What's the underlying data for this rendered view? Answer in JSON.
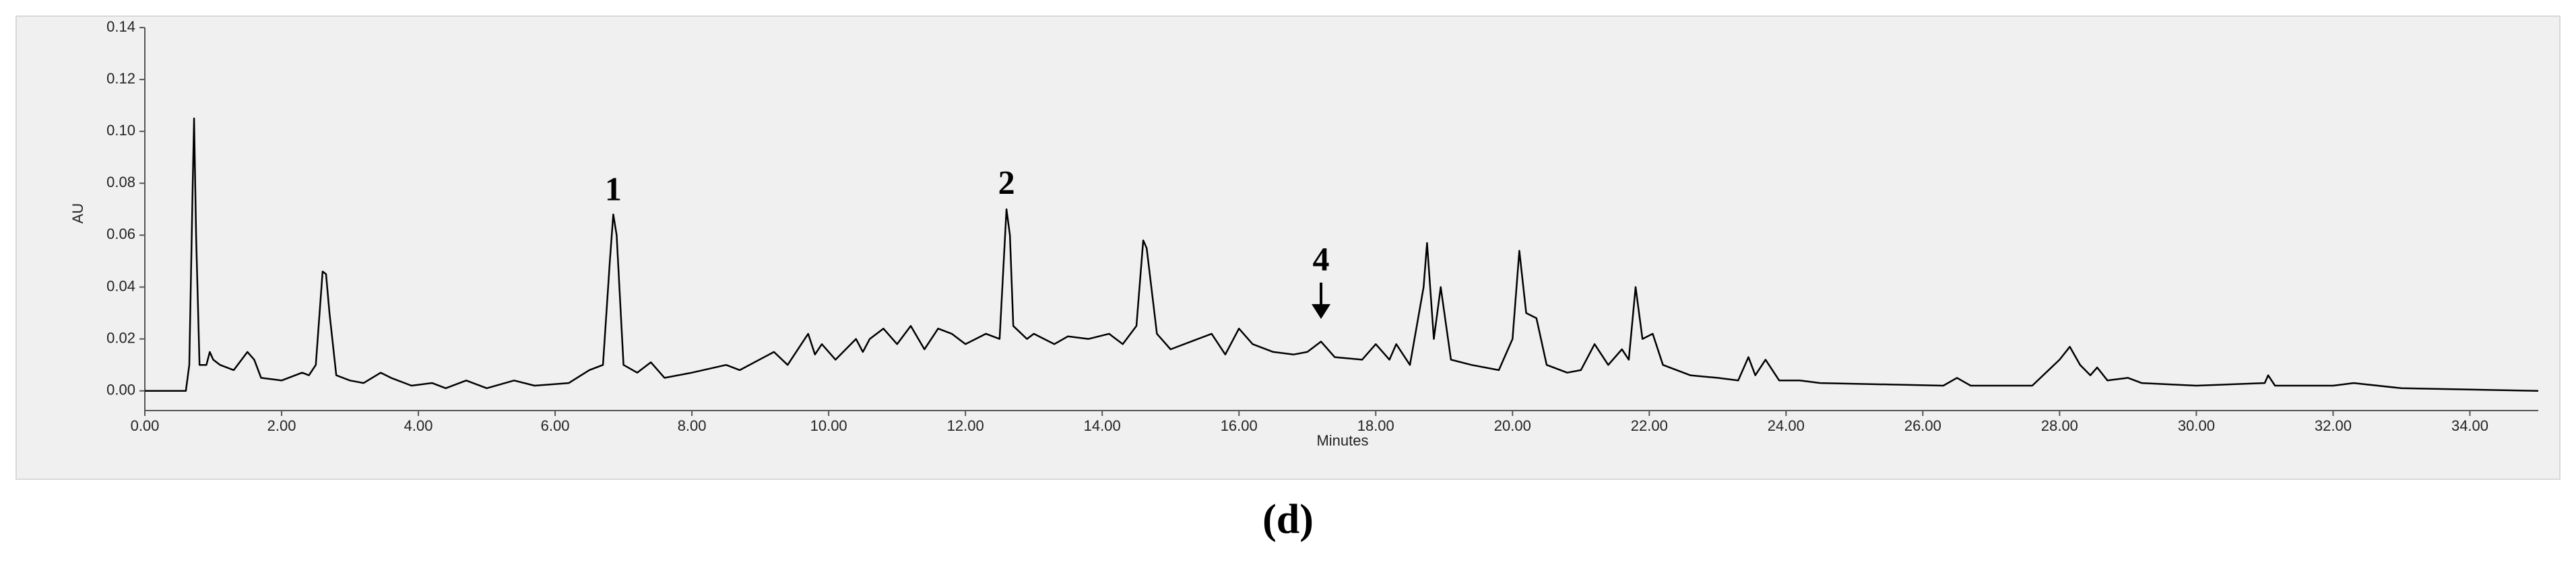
{
  "chart_data": {
    "type": "line",
    "caption": "(d)",
    "x_label": "Minutes",
    "y_label": "AU",
    "x": [
      0,
      0.6,
      0.65,
      0.7,
      0.72,
      0.75,
      0.8,
      0.9,
      0.95,
      1.0,
      1.1,
      1.3,
      1.5,
      1.6,
      1.7,
      2.0,
      2.3,
      2.4,
      2.5,
      2.6,
      2.65,
      2.7,
      2.8,
      3.0,
      3.2,
      3.45,
      3.6,
      3.9,
      4.2,
      4.4,
      4.7,
      5.0,
      5.4,
      5.7,
      6.2,
      6.5,
      6.7,
      6.8,
      6.85,
      6.9,
      7.0,
      7.2,
      7.4,
      7.6,
      8.0,
      8.5,
      8.7,
      9.2,
      9.4,
      9.7,
      9.8,
      9.9,
      10.1,
      10.4,
      10.5,
      10.6,
      10.8,
      11.0,
      11.2,
      11.4,
      11.6,
      11.8,
      12.0,
      12.3,
      12.5,
      12.6,
      12.65,
      12.7,
      12.9,
      13.0,
      13.3,
      13.5,
      13.8,
      14.1,
      14.3,
      14.5,
      14.6,
      14.65,
      14.8,
      15.0,
      15.4,
      15.6,
      15.8,
      16.0,
      16.2,
      16.5,
      16.8,
      17.0,
      17.2,
      17.4,
      17.8,
      18.0,
      18.2,
      18.3,
      18.5,
      18.7,
      18.75,
      18.85,
      18.95,
      19.1,
      19.4,
      19.8,
      20.0,
      20.1,
      20.2,
      20.35,
      20.5,
      20.8,
      21.0,
      21.2,
      21.4,
      21.6,
      21.7,
      21.8,
      21.9,
      22.05,
      22.2,
      22.6,
      23.0,
      23.3,
      23.45,
      23.55,
      23.7,
      23.9,
      24.2,
      24.5,
      26.3,
      26.5,
      26.7,
      27.6,
      28.0,
      28.15,
      28.3,
      28.45,
      28.55,
      28.7,
      29.0,
      29.2,
      30.0,
      31.0,
      31.05,
      31.15,
      32.0,
      32.3,
      33.0,
      35.0
    ],
    "values": [
      0,
      0,
      0.01,
      0.08,
      0.105,
      0.06,
      0.01,
      0.01,
      0.015,
      0.012,
      0.01,
      0.008,
      0.015,
      0.012,
      0.005,
      0.004,
      0.007,
      0.006,
      0.01,
      0.046,
      0.045,
      0.03,
      0.006,
      0.004,
      0.003,
      0.007,
      0.005,
      0.002,
      0.003,
      0.001,
      0.004,
      0.001,
      0.004,
      0.002,
      0.003,
      0.008,
      0.01,
      0.05,
      0.068,
      0.06,
      0.01,
      0.007,
      0.011,
      0.005,
      0.007,
      0.01,
      0.008,
      0.015,
      0.01,
      0.022,
      0.014,
      0.018,
      0.012,
      0.02,
      0.015,
      0.02,
      0.024,
      0.018,
      0.025,
      0.016,
      0.024,
      0.022,
      0.018,
      0.022,
      0.02,
      0.07,
      0.06,
      0.025,
      0.02,
      0.022,
      0.018,
      0.021,
      0.02,
      0.022,
      0.018,
      0.025,
      0.058,
      0.055,
      0.022,
      0.016,
      0.02,
      0.022,
      0.014,
      0.024,
      0.018,
      0.015,
      0.014,
      0.015,
      0.019,
      0.013,
      0.012,
      0.018,
      0.012,
      0.018,
      0.01,
      0.04,
      0.057,
      0.02,
      0.04,
      0.012,
      0.01,
      0.008,
      0.02,
      0.054,
      0.03,
      0.028,
      0.01,
      0.007,
      0.008,
      0.018,
      0.01,
      0.016,
      0.012,
      0.04,
      0.02,
      0.022,
      0.01,
      0.006,
      0.005,
      0.004,
      0.013,
      0.006,
      0.012,
      0.004,
      0.004,
      0.003,
      0.002,
      0.005,
      0.002,
      0.002,
      0.012,
      0.017,
      0.01,
      0.006,
      0.009,
      0.004,
      0.005,
      0.003,
      0.002,
      0.003,
      0.006,
      0.002,
      0.002,
      0.003,
      0.001,
      0
    ],
    "color": "#000000",
    "xlim": [
      0,
      35
    ],
    "ylim": [
      -0.0076,
      0.14
    ],
    "xticks": [
      {
        "value": 0,
        "label": "0.00"
      },
      {
        "value": 2,
        "label": "2.00"
      },
      {
        "value": 4,
        "label": "4.00"
      },
      {
        "value": 6,
        "label": "6.00"
      },
      {
        "value": 8,
        "label": "8.00"
      },
      {
        "value": 10,
        "label": "10.00"
      },
      {
        "value": 12,
        "label": "12.00"
      },
      {
        "value": 14,
        "label": "14.00"
      },
      {
        "value": 16,
        "label": "16.00"
      },
      {
        "value": 18,
        "label": "18.00"
      },
      {
        "value": 20,
        "label": "20.00"
      },
      {
        "value": 22,
        "label": "22.00"
      },
      {
        "value": 24,
        "label": "24.00"
      },
      {
        "value": 26,
        "label": "26.00"
      },
      {
        "value": 28,
        "label": "28.00"
      },
      {
        "value": 30,
        "label": "30.00"
      },
      {
        "value": 32,
        "label": "32.00"
      },
      {
        "value": 34,
        "label": "34.00"
      }
    ],
    "yticks": [
      {
        "value": 0,
        "label": "0.00"
      },
      {
        "value": 0.02,
        "label": "0.02"
      },
      {
        "value": 0.04,
        "label": "0.04"
      },
      {
        "value": 0.06,
        "label": "0.06"
      },
      {
        "value": 0.08,
        "label": "0.08"
      },
      {
        "value": 0.1,
        "label": "0.10"
      },
      {
        "value": 0.12,
        "label": "0.12"
      },
      {
        "value": 0.14,
        "label": "0.14"
      }
    ],
    "grid": false,
    "annotations": [
      {
        "text": "1",
        "x": 6.85,
        "y": 0.0765
      },
      {
        "text": "2",
        "x": 12.6,
        "y": 0.079
      },
      {
        "text": "4",
        "x": 17.2,
        "y": 0.0495,
        "arrow": true
      }
    ]
  }
}
